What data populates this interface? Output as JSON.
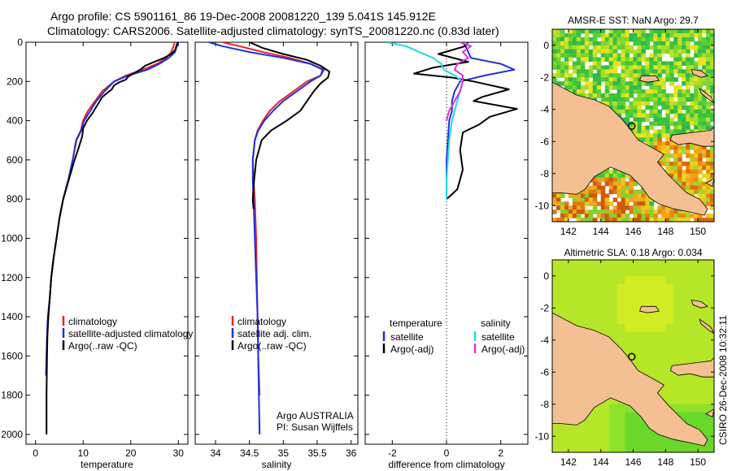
{
  "header": {
    "line1": "Argo profile: CS 5901161_86 19-Dec-2008 20081220_139 5.041S 145.912E",
    "line2": "Climatology: CARS2006. Satellite-adjusted climatology: synTS_20081220.nc (0.83d later)"
  },
  "side_label": "CSIRO 26-Dec-2008 10:32:11",
  "colors": {
    "climatology": "#e8202a",
    "satellite": "#1f2fe0",
    "argo": "#000000",
    "salinity_satellite": "#22d8e6",
    "salinity_argo": "#e030d8",
    "land": "#f3bf93"
  },
  "chart_data": [
    {
      "type": "line",
      "id": "temperature",
      "xlabel": "temperature",
      "ylabel": "",
      "xlim": [
        -2,
        32
      ],
      "ylim": [
        2050,
        0
      ],
      "xticks": [
        0,
        10,
        20,
        30
      ],
      "yticks": [
        0,
        200,
        400,
        600,
        800,
        1000,
        1200,
        1400,
        1600,
        1800,
        2000
      ],
      "legend": [
        "climatology",
        "satellite-adjusted climatology",
        "Argo(..raw -QC)"
      ],
      "legend_position": "bottom-right",
      "series": [
        {
          "name": "climatology",
          "color": "#e8202a",
          "x": [
            29.2,
            29.0,
            28.5,
            27.5,
            25.5,
            22.5,
            19.0,
            16.5,
            14.0,
            12.5,
            11.0,
            10.0,
            9.5,
            8.5,
            7.8,
            6.9,
            5.8,
            5.0,
            4.4,
            3.8,
            3.3,
            3.0,
            2.6,
            2.4,
            2.3,
            2.2
          ],
          "y": [
            0,
            20,
            50,
            80,
            110,
            140,
            170,
            200,
            250,
            300,
            350,
            400,
            450,
            500,
            600,
            700,
            800,
            900,
            1000,
            1100,
            1200,
            1300,
            1400,
            1500,
            1600,
            1700
          ]
        },
        {
          "name": "satellite-adjusted climatology",
          "color": "#1f2fe0",
          "x": [
            30.0,
            29.7,
            29.3,
            28.0,
            26.0,
            23.5,
            19.5,
            16.5,
            14.5,
            12.8,
            11.5,
            10.2,
            9.6,
            8.6,
            7.8,
            6.9,
            5.8,
            5.0,
            4.4,
            3.8,
            3.3,
            3.0,
            2.6,
            2.4,
            2.3,
            2.2
          ],
          "y": [
            0,
            20,
            50,
            80,
            110,
            140,
            170,
            200,
            250,
            300,
            350,
            400,
            450,
            500,
            600,
            700,
            800,
            900,
            1000,
            1100,
            1200,
            1300,
            1400,
            1500,
            1600,
            1700
          ]
        },
        {
          "name": "Argo(..raw -QC)",
          "color": "#000000",
          "x": [
            29.9,
            29.7,
            29.5,
            29.3,
            28.5,
            27.0,
            25.0,
            23.0,
            22.0,
            20.5,
            19.5,
            19.0,
            17.5,
            16.5,
            16.0,
            14.0,
            13.0,
            12.0,
            10.8,
            10.0,
            9.8,
            8.9,
            8.2,
            7.0,
            5.8,
            5.0,
            4.4,
            3.8,
            3.3,
            3.0,
            2.7,
            2.5,
            2.4,
            2.3,
            2.3
          ],
          "y": [
            0,
            10,
            25,
            40,
            60,
            80,
            100,
            120,
            140,
            160,
            175,
            190,
            205,
            220,
            240,
            280,
            320,
            360,
            400,
            440,
            480,
            550,
            600,
            700,
            800,
            900,
            1000,
            1100,
            1200,
            1300,
            1400,
            1500,
            1600,
            1800,
            2000
          ]
        }
      ]
    },
    {
      "type": "line",
      "id": "salinity",
      "xlabel": "salinity",
      "xlim": [
        33.7,
        36.1
      ],
      "ylim": [
        2050,
        0
      ],
      "xticks": [
        34,
        34.5,
        35,
        35.5,
        36
      ],
      "legend": [
        "climatology",
        "satellite adj. clim.",
        "Argo(..raw -QC)"
      ],
      "legend_position": "bottom-right",
      "annotation": [
        "Argo AUSTRALIA",
        "PI: Susan Wijffels"
      ],
      "series": [
        {
          "name": "climatology",
          "color": "#e8202a",
          "x": [
            34.1,
            34.35,
            34.7,
            35.1,
            35.4,
            35.58,
            35.55,
            35.35,
            35.15,
            34.95,
            34.8,
            34.7,
            34.62,
            34.58,
            34.55,
            34.56,
            34.58,
            34.6,
            34.61,
            34.62,
            34.63,
            34.65
          ],
          "y": [
            0,
            20,
            50,
            80,
            110,
            140,
            170,
            200,
            250,
            300,
            350,
            400,
            450,
            500,
            600,
            700,
            800,
            1000,
            1200,
            1400,
            1600,
            1800
          ]
        },
        {
          "name": "satellite adj. clim.",
          "color": "#1f2fe0",
          "x": [
            33.9,
            34.1,
            34.5,
            35.0,
            35.4,
            35.6,
            35.55,
            35.4,
            35.2,
            35.0,
            34.85,
            34.72,
            34.63,
            34.58,
            34.55,
            34.55,
            34.56,
            34.58,
            34.6,
            34.62,
            34.63,
            34.64,
            34.65
          ],
          "y": [
            0,
            20,
            50,
            80,
            110,
            140,
            170,
            200,
            250,
            300,
            350,
            400,
            450,
            500,
            600,
            700,
            800,
            1000,
            1200,
            1400,
            1600,
            1800,
            2000
          ]
        },
        {
          "name": "Argo(..raw -QC)",
          "color": "#000000",
          "x": [
            34.5,
            34.7,
            35.0,
            35.35,
            35.55,
            35.68,
            35.66,
            35.55,
            35.45,
            35.35,
            35.25,
            35.05,
            34.82,
            34.68,
            34.6,
            34.57,
            34.55,
            34.56
          ],
          "y": [
            0,
            30,
            60,
            90,
            120,
            150,
            180,
            210,
            250,
            300,
            350,
            400,
            450,
            500,
            600,
            700,
            800,
            850
          ]
        }
      ]
    },
    {
      "type": "line",
      "id": "difference",
      "xlabel": "difference from climatology",
      "xlim": [
        -3,
        3
      ],
      "ylim": [
        2050,
        0
      ],
      "xticks": [
        -2,
        0,
        2
      ],
      "legend_columns": [
        {
          "title": "temperature",
          "items": [
            "satellite",
            "Argo(-adj)"
          ]
        },
        {
          "title": "salinity",
          "items": [
            "satellite",
            "Argo(-adj)"
          ]
        }
      ],
      "series": [
        {
          "name": "temperature satellite",
          "color": "#1f2fe0",
          "x": [
            0.8,
            0.7,
            0.8,
            0.9,
            2.0,
            2.5,
            1.4,
            0.5,
            0.3,
            0.2,
            0.2,
            0.1,
            0.05,
            0.0,
            0.0,
            0.0
          ],
          "y": [
            0,
            20,
            50,
            80,
            110,
            140,
            170,
            200,
            250,
            300,
            350,
            400,
            500,
            600,
            700,
            800
          ]
        },
        {
          "name": "temperature Argo(-adj)",
          "color": "#000000",
          "x": [
            0.6,
            0.7,
            -0.3,
            0.8,
            -0.5,
            -1.2,
            0.2,
            1.0,
            2.3,
            1.3,
            1.0,
            2.6,
            1.6,
            1.2,
            0.6,
            0.5,
            0.6,
            0.4,
            0.0
          ],
          "y": [
            0,
            20,
            60,
            100,
            130,
            160,
            180,
            200,
            240,
            280,
            300,
            340,
            380,
            420,
            460,
            550,
            650,
            750,
            800
          ]
        },
        {
          "name": "salinity satellite",
          "color": "#22d8e6",
          "x": [
            -2.2,
            -1.5,
            -1.0,
            -0.5,
            -0.2,
            -0.1,
            0.3,
            0.6,
            0.5,
            0.4,
            0.3,
            0.2,
            0.1,
            0.0,
            0.0
          ],
          "y": [
            0,
            20,
            50,
            80,
            110,
            140,
            170,
            200,
            250,
            300,
            350,
            400,
            500,
            700,
            800
          ]
        },
        {
          "name": "salinity Argo(-adj)",
          "color": "#e030d8",
          "x": [
            0.5,
            0.9,
            0.6,
            0.8,
            0.4,
            0.3,
            0.6,
            0.6,
            0.5,
            0.3,
            0.1,
            0.0
          ],
          "y": [
            0,
            20,
            50,
            80,
            110,
            140,
            170,
            200,
            250,
            300,
            350,
            400
          ]
        }
      ]
    },
    {
      "type": "heatmap",
      "id": "sst_map",
      "title": "AMSR-E SST: NaN Argo: 29.7",
      "xticks": [
        142,
        144,
        146,
        148,
        150
      ],
      "yticks": [
        0,
        -2,
        -4,
        -6,
        -8,
        -10
      ],
      "xlim": [
        141,
        151
      ],
      "ylim": [
        -11,
        1
      ],
      "marker": {
        "lon": 145.912,
        "lat": -5.041
      }
    },
    {
      "type": "heatmap",
      "id": "sla_map",
      "title": "Altimetric SLA: 0.18 Argo: 0.034",
      "xticks": [
        142,
        144,
        146,
        148,
        150
      ],
      "yticks": [
        0,
        -2,
        -4,
        -6,
        -8,
        -10
      ],
      "xlim": [
        141,
        151
      ],
      "ylim": [
        -11,
        1
      ],
      "marker": {
        "lon": 145.912,
        "lat": -5.041
      }
    }
  ]
}
